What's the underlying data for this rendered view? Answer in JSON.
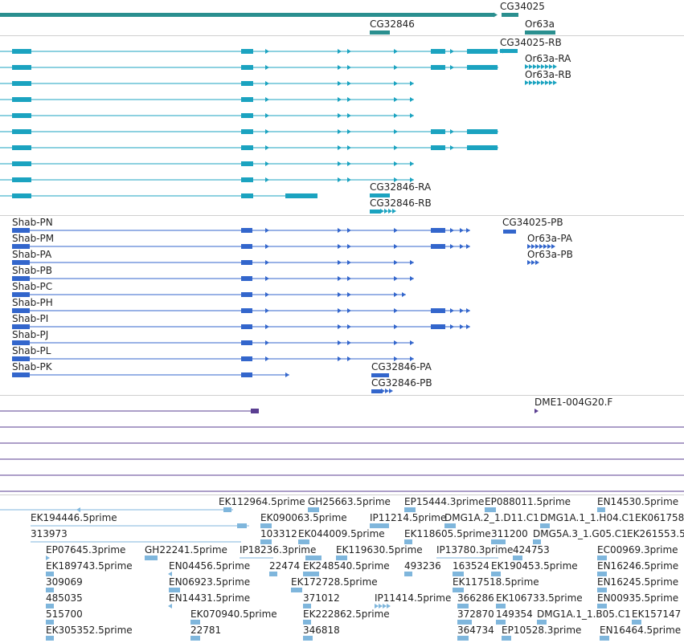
{
  "colors": {
    "gene": "#2a8f8f",
    "mrna": "#1ba3c0",
    "protein": "#3366cc",
    "cdna": "#5a3e91",
    "est": "#7fb6dc",
    "separator": "#cfcfcf"
  },
  "gene_track": {
    "labels": [
      "CG34025",
      "CG32846",
      "Or63a"
    ]
  },
  "mrna_track": {
    "labels": [
      "CG34025-RB",
      "Or63a-RA",
      "Or63a-RB",
      "CG32846-RA",
      "CG32846-RB"
    ]
  },
  "protein_track": {
    "labels": [
      "Shab-PN",
      "Shab-PM",
      "Shab-PA",
      "Shab-PB",
      "Shab-PC",
      "Shab-PH",
      "Shab-PI",
      "Shab-PJ",
      "Shab-PL",
      "Shab-PK",
      "CG34025-PB",
      "Or63a-PA",
      "Or63a-PB",
      "CG32846-PA",
      "CG32846-PB"
    ]
  },
  "cdna_track": {
    "labels": [
      "DME1-004G20.F"
    ]
  },
  "est_track": {
    "labels": [
      "EK112964.5prime",
      "GH25663.5prime",
      "EP15444.3prime",
      "EP088011.5prime",
      "EN14530.5prime",
      "EK194446.5prime",
      "EK090063.5prime",
      "IP11214.5prime",
      "DMG1A.2_1.D11.C1",
      "DMG1A.1_1.H04.C1",
      "EK061758",
      "313973",
      "103312",
      "EK044009.5prime",
      "EK118605.5prime",
      "311200",
      "DMG5A.3_1.G05.C1",
      "EK261553.5",
      "EP07645.3prime",
      "GH22241.5prime",
      "IP18236.3prime",
      "EK119630.5prime",
      "IP13780.3prime",
      "424753",
      "EC00969.3prime",
      "EK189743.5prime",
      "EN04456.5prime",
      "22474",
      "EK248540.5prime",
      "493236",
      "163524",
      "EK190453.5prime",
      "EN16246.5prime",
      "309069",
      "EN06923.5prime",
      "EK172728.5prime",
      "EK117518.5prime",
      "EN16245.5prime",
      "485035",
      "EN14431.5prime",
      "371012",
      "IP11414.5prime",
      "366286",
      "EK106733.5prime",
      "EN00935.5prime",
      "515700",
      "EK070940.5prime",
      "EK222862.5prime",
      "372870",
      "149354",
      "DMG1A.1_1.B05.C1",
      "EK157147",
      "EK305352.5prime",
      "22781",
      "346818",
      "364734",
      "EP10528.3prime",
      "EN16464.5prime"
    ]
  }
}
